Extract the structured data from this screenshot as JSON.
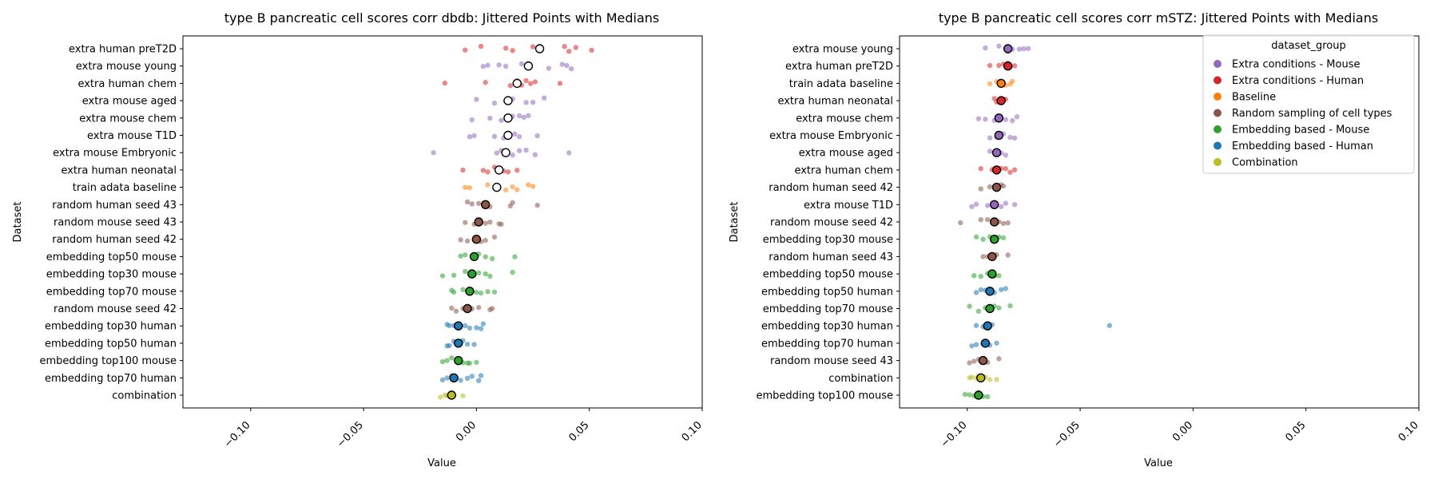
{
  "colors": {
    "Extra conditions - Mouse": "#9467bd",
    "Extra conditions - Human": "#d62728",
    "Baseline": "#ff7f0e",
    "Random sampling of cell types": "#8c564b",
    "Embedding based - Mouse": "#2ca02c",
    "Embedding based - Human": "#1f77b4",
    "Combination": "#bcbd22"
  },
  "chart_data": [
    {
      "type": "scatter",
      "title": "type B pancreatic cell scores corr dbdb: Jittered Points with Medians",
      "xlabel": "Value",
      "ylabel": "Dataset",
      "xlim": [
        -0.13,
        0.1
      ],
      "xticks": [
        "−0.10",
        "−0.05",
        "0.00",
        "0.05",
        "0.10"
      ],
      "xtick_values": [
        -0.1,
        -0.05,
        0.0,
        0.05,
        0.1
      ],
      "grid": false,
      "legend": "none",
      "series": [
        {
          "label": "extra human preT2D",
          "group": "Extra conditions - Human",
          "median": 0.028,
          "points": [
            -0.005,
            0.002,
            0.013,
            0.016,
            0.025,
            0.028,
            0.039,
            0.041,
            0.044,
            0.051
          ]
        },
        {
          "label": "extra mouse young",
          "group": "Extra conditions - Mouse",
          "median": 0.023,
          "points": [
            0.003,
            0.005,
            0.01,
            0.013,
            0.02,
            0.023,
            0.032,
            0.038,
            0.04,
            0.042
          ]
        },
        {
          "label": "extra human chem",
          "group": "Extra conditions - Human",
          "median": 0.018,
          "points": [
            -0.014,
            0.004,
            0.015,
            0.018,
            0.02,
            0.022,
            0.024,
            0.026,
            0.037
          ]
        },
        {
          "label": "extra mouse aged",
          "group": "Extra conditions - Mouse",
          "median": 0.014,
          "points": [
            0.0,
            0.008,
            0.013,
            0.014,
            0.016,
            0.022,
            0.025,
            0.03
          ]
        },
        {
          "label": "extra mouse chem",
          "group": "Extra conditions - Mouse",
          "median": 0.014,
          "points": [
            -0.002,
            0.006,
            0.011,
            0.014,
            0.016,
            0.019,
            0.021,
            0.023
          ]
        },
        {
          "label": "extra mouse T1D",
          "group": "Extra conditions - Mouse",
          "median": 0.014,
          "points": [
            -0.003,
            -0.001,
            0.008,
            0.012,
            0.014,
            0.017,
            0.019,
            0.027
          ]
        },
        {
          "label": "extra mouse Embryonic",
          "group": "Extra conditions - Mouse",
          "median": 0.013,
          "points": [
            -0.019,
            0.009,
            0.011,
            0.013,
            0.016,
            0.019,
            0.022,
            0.026,
            0.041
          ]
        },
        {
          "label": "extra human neonatal",
          "group": "Extra conditions - Human",
          "median": 0.01,
          "points": [
            -0.006,
            0.003,
            0.005,
            0.008,
            0.01,
            0.012,
            0.014,
            0.018
          ]
        },
        {
          "label": "train adata baseline",
          "group": "Baseline",
          "median": 0.009,
          "points": [
            -0.005,
            -0.003,
            0.005,
            0.01,
            0.013,
            0.016,
            0.018,
            0.023,
            0.025
          ]
        },
        {
          "label": "random human seed 43",
          "group": "Random sampling of cell types",
          "median": 0.004,
          "points": [
            -0.004,
            -0.002,
            0.001,
            0.004,
            0.006,
            0.015,
            0.016,
            0.027
          ]
        },
        {
          "label": "random mouse seed 43",
          "group": "Random sampling of cell types",
          "median": 0.001,
          "points": [
            -0.005,
            -0.001,
            0.001,
            0.004,
            0.006,
            0.01,
            0.011
          ]
        },
        {
          "label": "random human seed 42",
          "group": "Random sampling of cell types",
          "median": 0.0,
          "points": [
            -0.007,
            -0.004,
            -0.001,
            0.0,
            0.002,
            0.004,
            0.008
          ]
        },
        {
          "label": "embedding top50 mouse",
          "group": "Embedding based - Mouse",
          "median": -0.001,
          "points": [
            -0.007,
            -0.005,
            -0.001,
            0.001,
            0.004,
            0.007,
            0.017
          ]
        },
        {
          "label": "embedding top30 mouse",
          "group": "Embedding based - Mouse",
          "median": -0.002,
          "points": [
            -0.015,
            -0.01,
            -0.005,
            -0.002,
            0.001,
            0.004,
            0.006,
            0.016
          ]
        },
        {
          "label": "embedding top70 mouse",
          "group": "Embedding based - Mouse",
          "median": -0.003,
          "points": [
            -0.011,
            -0.01,
            -0.006,
            -0.003,
            0.0,
            0.002,
            0.005,
            0.008
          ]
        },
        {
          "label": "random mouse seed 42",
          "group": "Random sampling of cell types",
          "median": -0.004,
          "points": [
            -0.011,
            -0.009,
            -0.006,
            -0.004,
            -0.002,
            0.001,
            0.006,
            0.007
          ]
        },
        {
          "label": "embedding top30 human",
          "group": "Embedding based - Human",
          "median": -0.008,
          "points": [
            -0.013,
            -0.012,
            -0.01,
            -0.008,
            -0.005,
            -0.003,
            0.0,
            0.002,
            0.003
          ]
        },
        {
          "label": "embedding top50 human",
          "group": "Embedding based - Human",
          "median": -0.008,
          "points": [
            -0.013,
            -0.012,
            -0.01,
            -0.008,
            -0.006,
            -0.004,
            -0.001
          ]
        },
        {
          "label": "embedding top100 mouse",
          "group": "Embedding based - Mouse",
          "median": -0.008,
          "points": [
            -0.015,
            -0.013,
            -0.011,
            -0.008,
            -0.006,
            -0.004,
            -0.003,
            0.0
          ]
        },
        {
          "label": "embedding top70 human",
          "group": "Embedding based - Human",
          "median": -0.01,
          "points": [
            -0.015,
            -0.013,
            -0.011,
            -0.01,
            -0.007,
            -0.004,
            -0.002,
            0.001,
            0.002
          ]
        },
        {
          "label": "combination",
          "group": "Combination",
          "median": -0.011,
          "points": [
            -0.016,
            -0.014,
            -0.013,
            -0.011,
            -0.006
          ]
        }
      ]
    },
    {
      "type": "scatter",
      "title": "type B pancreatic cell scores corr mSTZ: Jittered Points with Medians",
      "xlabel": "Value",
      "ylabel": "Dataset",
      "xlim": [
        -0.13,
        0.1
      ],
      "xticks": [
        "−0.10",
        "−0.05",
        "0.00",
        "0.05",
        "0.10"
      ],
      "xtick_values": [
        -0.1,
        -0.05,
        0.0,
        0.05,
        0.1
      ],
      "grid": false,
      "legend": "top-right",
      "legend_title": "dataset_group",
      "legend_entries": [
        "Extra conditions - Mouse",
        "Extra conditions - Human",
        "Baseline",
        "Random sampling of cell types",
        "Embedding based - Mouse",
        "Embedding based - Human",
        "Combination"
      ],
      "series": [
        {
          "label": "extra mouse young",
          "group": "Extra conditions - Mouse",
          "median": -0.082,
          "points": [
            -0.092,
            -0.086,
            -0.083,
            -0.082,
            -0.08,
            -0.077,
            -0.075,
            -0.073
          ]
        },
        {
          "label": "extra human preT2D",
          "group": "Extra conditions - Human",
          "median": -0.082,
          "points": [
            -0.09,
            -0.086,
            -0.084,
            -0.082,
            -0.081,
            -0.079
          ]
        },
        {
          "label": "train adata baseline",
          "group": "Baseline",
          "median": -0.085,
          "points": [
            -0.09,
            -0.087,
            -0.085,
            -0.083,
            -0.081,
            -0.08
          ]
        },
        {
          "label": "extra human neonatal",
          "group": "Extra conditions - Human",
          "median": -0.085,
          "points": [
            -0.088,
            -0.087,
            -0.086,
            -0.085,
            -0.084,
            -0.083
          ]
        },
        {
          "label": "extra mouse chem",
          "group": "Extra conditions - Mouse",
          "median": -0.086,
          "points": [
            -0.095,
            -0.092,
            -0.088,
            -0.086,
            -0.083,
            -0.08,
            -0.078
          ]
        },
        {
          "label": "extra mouse Embryonic",
          "group": "Extra conditions - Mouse",
          "median": -0.086,
          "points": [
            -0.09,
            -0.087,
            -0.086,
            -0.084,
            -0.081,
            -0.079
          ]
        },
        {
          "label": "extra mouse aged",
          "group": "Extra conditions - Mouse",
          "median": -0.087,
          "points": [
            -0.09,
            -0.088,
            -0.087,
            -0.085,
            -0.083
          ]
        },
        {
          "label": "extra human chem",
          "group": "Extra conditions - Human",
          "median": -0.087,
          "points": [
            -0.094,
            -0.089,
            -0.087,
            -0.085,
            -0.083,
            -0.081,
            -0.079
          ]
        },
        {
          "label": "random human seed 42",
          "group": "Random sampling of cell types",
          "median": -0.087,
          "points": [
            -0.094,
            -0.09,
            -0.088,
            -0.087,
            -0.085,
            -0.084
          ]
        },
        {
          "label": "extra mouse T1D",
          "group": "Extra conditions - Mouse",
          "median": -0.088,
          "points": [
            -0.098,
            -0.096,
            -0.091,
            -0.088,
            -0.085,
            -0.083,
            -0.079
          ]
        },
        {
          "label": "random mouse seed 42",
          "group": "Random sampling of cell types",
          "median": -0.088,
          "points": [
            -0.103,
            -0.094,
            -0.091,
            -0.088,
            -0.086,
            -0.084,
            -0.082
          ]
        },
        {
          "label": "embedding top30 mouse",
          "group": "Embedding based - Mouse",
          "median": -0.088,
          "points": [
            -0.096,
            -0.093,
            -0.09,
            -0.088,
            -0.086,
            -0.084
          ]
        },
        {
          "label": "random human seed 43",
          "group": "Random sampling of cell types",
          "median": -0.089,
          "points": [
            -0.093,
            -0.091,
            -0.089,
            -0.087,
            -0.082
          ]
        },
        {
          "label": "embedding top50 mouse",
          "group": "Embedding based - Mouse",
          "median": -0.089,
          "points": [
            -0.097,
            -0.094,
            -0.091,
            -0.089,
            -0.088,
            -0.086
          ]
        },
        {
          "label": "embedding top50 human",
          "group": "Embedding based - Human",
          "median": -0.09,
          "points": [
            -0.096,
            -0.094,
            -0.092,
            -0.09,
            -0.088,
            -0.085,
            -0.083
          ]
        },
        {
          "label": "embedding top70 mouse",
          "group": "Embedding based - Mouse",
          "median": -0.09,
          "points": [
            -0.099,
            -0.095,
            -0.092,
            -0.09,
            -0.088,
            -0.086,
            -0.081
          ]
        },
        {
          "label": "embedding top30 human",
          "group": "Embedding based - Human",
          "median": -0.091,
          "points": [
            -0.096,
            -0.093,
            -0.091,
            -0.089,
            -0.037
          ]
        },
        {
          "label": "embedding top70 human",
          "group": "Embedding based - Human",
          "median": -0.092,
          "points": [
            -0.098,
            -0.096,
            -0.093,
            -0.092,
            -0.09,
            -0.087
          ]
        },
        {
          "label": "random mouse seed 43",
          "group": "Random sampling of cell types",
          "median": -0.093,
          "points": [
            -0.099,
            -0.097,
            -0.095,
            -0.093,
            -0.091,
            -0.086
          ]
        },
        {
          "label": "combination",
          "group": "Combination",
          "median": -0.094,
          "points": [
            -0.099,
            -0.098,
            -0.096,
            -0.094,
            -0.092,
            -0.09,
            -0.087
          ]
        },
        {
          "label": "embedding top100 mouse",
          "group": "Embedding based - Mouse",
          "median": -0.095,
          "points": [
            -0.101,
            -0.099,
            -0.097,
            -0.095,
            -0.093,
            -0.091
          ]
        }
      ]
    }
  ]
}
